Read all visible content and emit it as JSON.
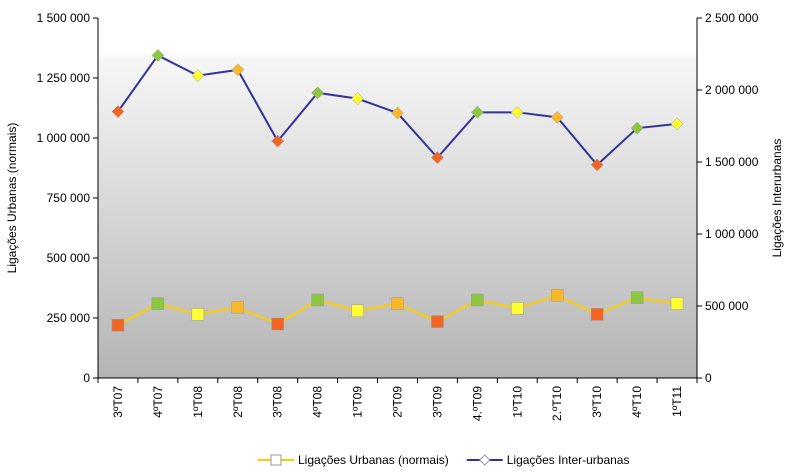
{
  "chart_data": {
    "type": "line",
    "categories": [
      "3ºT07",
      "4ºT07",
      "1ºT08",
      "2ºT08",
      "3ºT08",
      "4ºT08",
      "1ºT09",
      "2ºT09",
      "3ºT09",
      "4.ºT09",
      "1ºT10",
      "2.ºT10",
      "3ºT10",
      "4ºT10",
      "1ºT11"
    ],
    "y_label": "Ligações Urbanas (normais)",
    "y2_label": "Ligações Interurbanas",
    "ylim": [
      0,
      1500000
    ],
    "yticks": [
      0,
      {
        "value": 250000,
        "label": "250 000"
      },
      {
        "value": 500000,
        "label": "500 000"
      },
      {
        "value": 750000,
        "label": "750 000"
      },
      {
        "value": 1000000,
        "label": "1 000 000"
      },
      {
        "value": 1250000,
        "label": "1 250 000"
      },
      {
        "value": 1500000,
        "label": "1 500 000"
      }
    ],
    "y2lim": [
      0,
      2500000
    ],
    "y2ticks": [
      0,
      {
        "value": 500000,
        "label": "500 000"
      },
      {
        "value": 1000000,
        "label": "1 000 000"
      },
      {
        "value": 1500000,
        "label": "1 500 000"
      },
      {
        "value": 2000000,
        "label": "2 000 000"
      },
      {
        "value": 2500000,
        "label": "2 500 000"
      }
    ],
    "marker_colors": [
      "#f26522",
      "#8dc63f",
      "#ffff33",
      "#fbb829",
      "#f26522",
      "#8dc63f",
      "#ffff33",
      "#fbb829",
      "#f26522",
      "#8dc63f",
      "#ffff33",
      "#fbb829",
      "#f26522",
      "#8dc63f",
      "#ffff33"
    ],
    "series": [
      {
        "name": "Ligações Urbanas (normais)",
        "color": "#ffcc00",
        "marker": "square",
        "values": [
          220000,
          310000,
          265000,
          295000,
          225000,
          325000,
          280000,
          310000,
          235000,
          325000,
          290000,
          345000,
          265000,
          335000,
          310000
        ]
      },
      {
        "name": "Ligações Inter-urbanas",
        "color": "#333399",
        "marker": "diamond",
        "axis": "y2",
        "values": [
          1850000,
          2240000,
          2100000,
          2140000,
          1645000,
          1980000,
          1940000,
          1840000,
          1530000,
          1845000,
          1845000,
          1810000,
          1480000,
          1735000,
          1765000
        ]
      }
    ],
    "legend": "bottom"
  }
}
